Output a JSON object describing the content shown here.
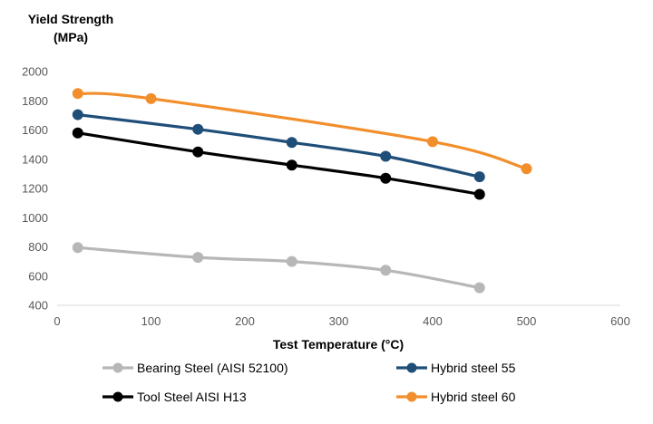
{
  "chart_data": {
    "type": "line",
    "title": "",
    "ylabel": "Yield Strength",
    "ylabel_unit": "(MPa)",
    "xlabel": "Test Temperature (°C)",
    "xlim": [
      0,
      600
    ],
    "ylim": [
      400,
      2000
    ],
    "x_ticks": [
      0,
      100,
      200,
      300,
      400,
      500,
      600
    ],
    "y_ticks": [
      400,
      600,
      800,
      1000,
      1200,
      1400,
      1600,
      1800,
      2000
    ],
    "grid": false,
    "legend_position": "bottom",
    "series": [
      {
        "name": "Bearing Steel (AISI 52100)",
        "color": "#b7b7b7",
        "x": [
          22,
          150,
          250,
          350,
          450
        ],
        "y": [
          795,
          728,
          700,
          640,
          520
        ]
      },
      {
        "name": "Hybrid steel 55",
        "color": "#1f4e79",
        "x": [
          22,
          150,
          250,
          350,
          450
        ],
        "y": [
          1705,
          1605,
          1515,
          1420,
          1280
        ]
      },
      {
        "name": "Tool Steel AISI H13",
        "color": "#000000",
        "x": [
          22,
          150,
          250,
          350,
          450
        ],
        "y": [
          1580,
          1450,
          1360,
          1270,
          1160
        ]
      },
      {
        "name": "Hybrid steel 60",
        "color": "#f28e2b",
        "x": [
          22,
          100,
          400,
          500
        ],
        "y": [
          1850,
          1815,
          1520,
          1335
        ]
      }
    ]
  }
}
